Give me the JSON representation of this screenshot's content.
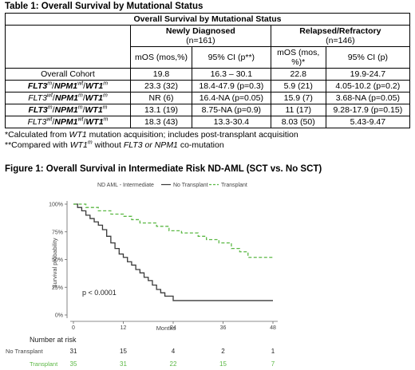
{
  "table": {
    "title": "Table 1: Overall Survival by Mutational Status",
    "caption": "Overall Survival by Mutational Status",
    "group1_label": "Newly Diagnosed",
    "group1_n": "(n=161)",
    "group2_label": "Relapsed/Refractory",
    "group2_n": "(n=146)",
    "col_headers": [
      "mOS (mos,%)",
      "95% CI (p**)",
      "mOS (mos, %)*",
      "95% CI (p)"
    ],
    "rows": [
      {
        "label": "Overall Cohort",
        "values": [
          "19.8",
          "16.3 – 30.1",
          "22.8",
          "19.9-24.7"
        ]
      },
      {
        "label": "FLT3m/NPM1wt/WT1m",
        "values": [
          "23.3 (32)",
          "18.4-47.9 (p=0.3)",
          "5.9 (21)",
          "4.05-10.2 (p=0.2)"
        ]
      },
      {
        "label": "FLT3wt/NPM1m/WT1m",
        "values": [
          "NR (6)",
          "16.4-NA (p=0.05)",
          "15.9 (7)",
          "3.68-NA (p=0.05)"
        ]
      },
      {
        "label": "FLT3m/NPM1m/WT1m",
        "values": [
          "13.1 (19)",
          "8.75-NA (p=0.9)",
          "11 (17)",
          "9.28-17.9 (p=0.15)"
        ]
      },
      {
        "label": "FLT3wt/NPM1wt/WT1m",
        "values": [
          "18.3 (43)",
          "13.3-30.4",
          "8.03 (50)",
          "5.43-9.47"
        ]
      }
    ]
  },
  "footnotes": {
    "note1_a": "*Calculated from ",
    "note1_b": "WT1",
    "note1_c": " mutation acquisition; includes post-transplant acquisition",
    "note2_a": "**Compared with ",
    "note2_b": "WT1",
    "note2_c": "m",
    "note2_d": " without ",
    "note2_e": "FLT3 or NPM1",
    "note2_f": " co-mutation"
  },
  "figure": {
    "title": "Figure 1: Overall Survival in Intermediate Risk ND-AML (SCT vs. No SCT)"
  },
  "colors": {
    "no_transplant": "#3a3a3a",
    "transplant": "#5bb844"
  },
  "chart_data": {
    "type": "line",
    "title": "",
    "legend_title": "ND AML - Intermediate",
    "legend_placement": "top",
    "xlabel": "Months",
    "ylabel": "Survival probability",
    "xlim": [
      0,
      48
    ],
    "ylim": [
      0,
      1
    ],
    "x_ticks": [
      0,
      12,
      24,
      36,
      48
    ],
    "y_tick_labels": [
      "0%",
      "25%",
      "50%",
      "75%",
      "100%"
    ],
    "annotation": "p < 0.0001",
    "series": [
      {
        "name": "No Transplant",
        "x": [
          0,
          1,
          2,
          3,
          4,
          5,
          6,
          7,
          8,
          9,
          10,
          11,
          12,
          13,
          14,
          15,
          16,
          17,
          18,
          19,
          20,
          21,
          22,
          24,
          48
        ],
        "y": [
          1.0,
          0.97,
          0.94,
          0.9,
          0.87,
          0.84,
          0.81,
          0.77,
          0.71,
          0.65,
          0.6,
          0.55,
          0.52,
          0.48,
          0.45,
          0.41,
          0.38,
          0.34,
          0.31,
          0.27,
          0.23,
          0.2,
          0.17,
          0.13,
          0.13
        ]
      },
      {
        "name": "Transplant",
        "x": [
          0,
          3,
          6,
          9,
          12,
          14,
          16,
          20,
          23,
          26,
          30,
          32,
          35,
          38,
          40,
          42,
          48
        ],
        "y": [
          1.0,
          0.97,
          0.94,
          0.91,
          0.89,
          0.86,
          0.83,
          0.8,
          0.76,
          0.74,
          0.71,
          0.68,
          0.65,
          0.6,
          0.57,
          0.52,
          0.52
        ]
      }
    ],
    "risk_table": {
      "title": "Number at risk",
      "rows": [
        {
          "name": "No Transplant",
          "values": [
            "31",
            "15",
            "4",
            "2",
            "1"
          ]
        },
        {
          "name": "Transplant",
          "values": [
            "35",
            "31",
            "22",
            "15",
            "7"
          ]
        }
      ]
    }
  }
}
